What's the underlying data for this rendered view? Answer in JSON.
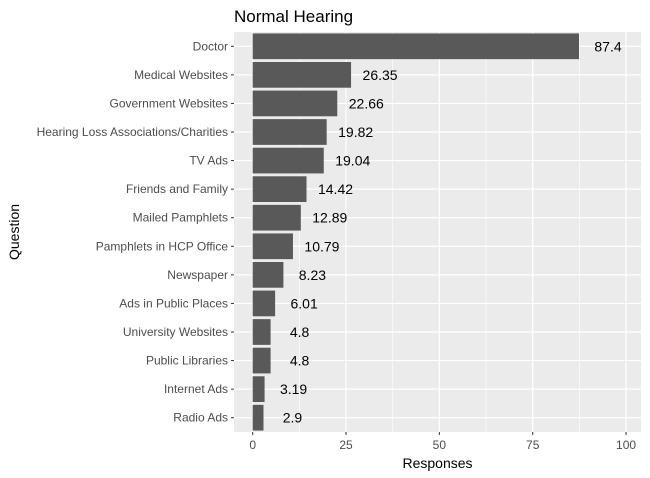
{
  "chart_data": {
    "type": "bar",
    "orientation": "horizontal",
    "title": "Normal Hearing",
    "xlabel": "Responses",
    "ylabel": "Question",
    "xlim": [
      -5,
      104
    ],
    "xticks": [
      0,
      25,
      50,
      75,
      100
    ],
    "grid": true,
    "categories": [
      "Doctor",
      "Medical Websites",
      "Government Websites",
      "Hearing Loss Associations/Charities",
      "TV Ads",
      "Friends and Family",
      "Mailed Pamphlets",
      "Pamphlets in HCP Office",
      "Newspaper",
      "Ads in Public Places",
      "University Websites",
      "Public Libraries",
      "Internet Ads",
      "Radio Ads"
    ],
    "values": [
      87.4,
      26.35,
      22.66,
      19.82,
      19.04,
      14.42,
      12.89,
      10.79,
      8.23,
      6.01,
      4.8,
      4.8,
      3.19,
      2.9
    ],
    "value_labels": [
      "87.4",
      "26.35",
      "22.66",
      "19.82",
      "19.04",
      "14.42",
      "12.89",
      "10.79",
      "8.23",
      "6.01",
      "4.8",
      "4.8",
      "3.19",
      "2.9"
    ],
    "colors": {
      "bar": "#595959",
      "panel": "#ebebeb",
      "grid": "#ffffff"
    }
  }
}
